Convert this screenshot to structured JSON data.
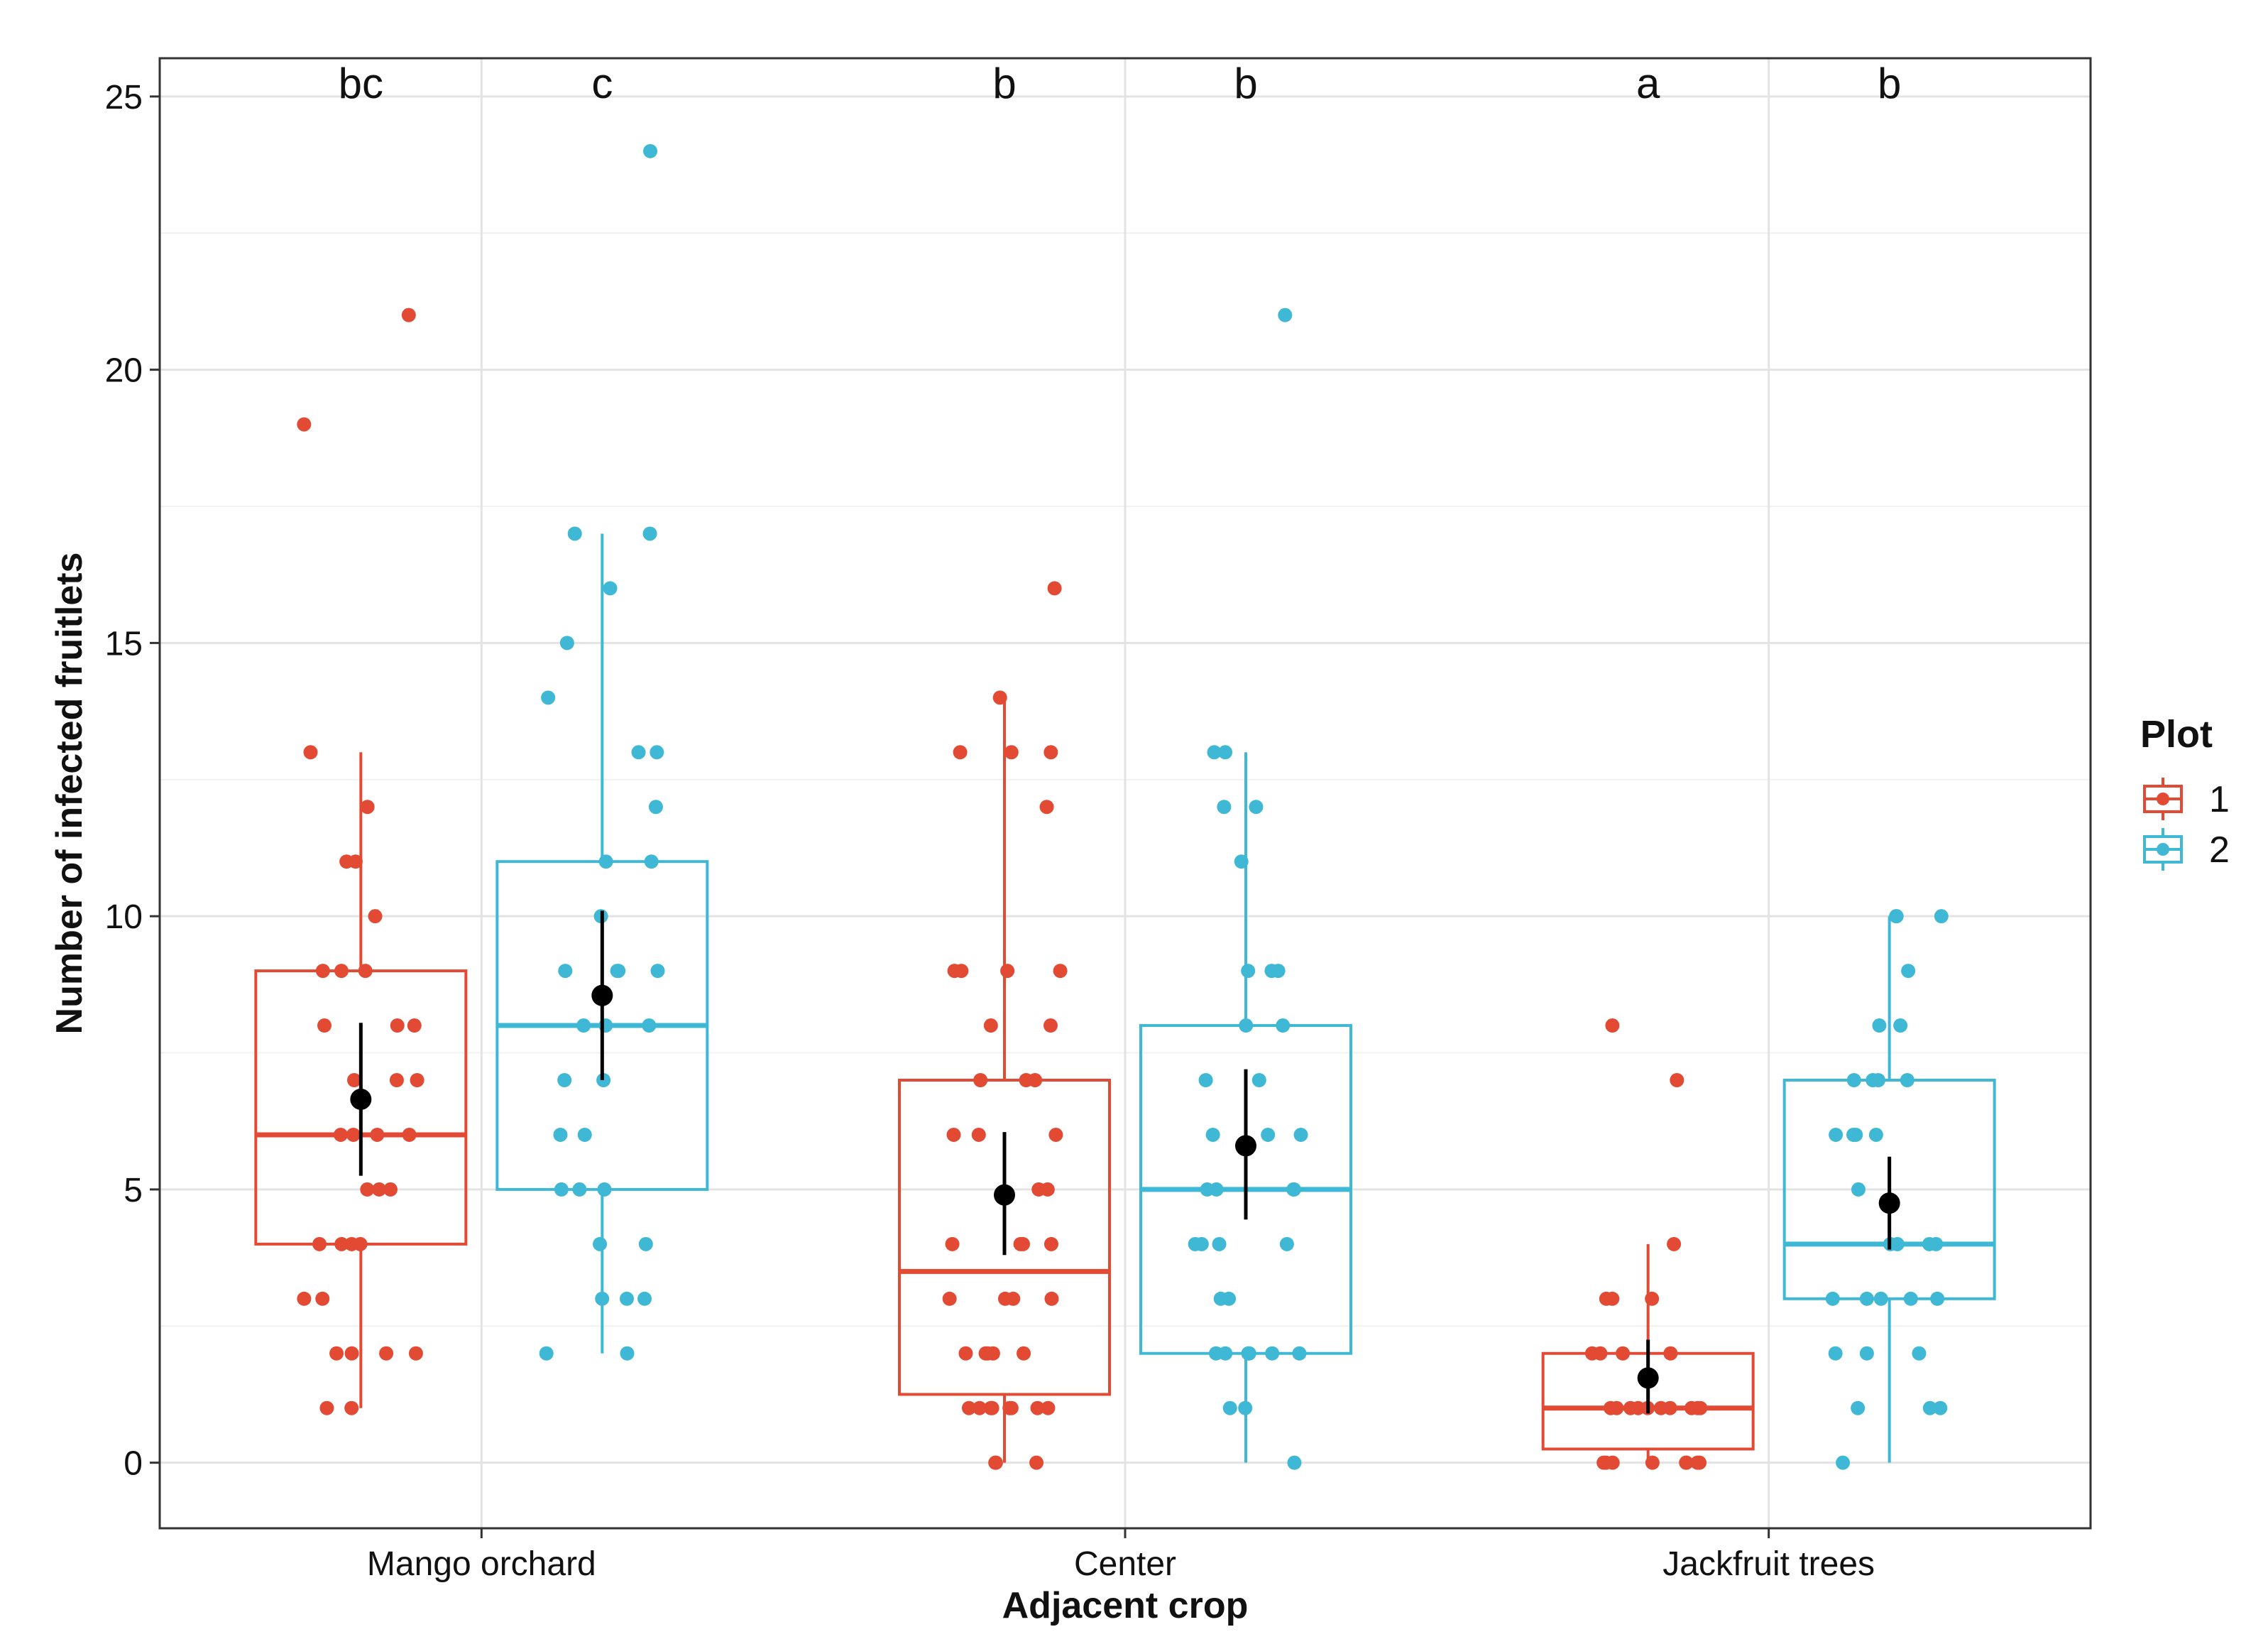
{
  "chart_data": {
    "type": "box",
    "xlabel": "Adjacent crop",
    "ylabel": "Number of infected fruitlets",
    "ylim": [
      -1.2,
      25.7
    ],
    "yticks": [
      0,
      5,
      10,
      15,
      20,
      25
    ],
    "grid": true,
    "categories": [
      "Mango orchard",
      "Center",
      "Jackfruit trees"
    ],
    "legend": {
      "title": "Plot",
      "position": "right",
      "entries": [
        {
          "label": "1",
          "color": "#E24A33"
        },
        {
          "label": "2",
          "color": "#3FB8D6"
        }
      ]
    },
    "groups": [
      {
        "category": "Mango orchard",
        "plot": "1",
        "color": "#E24A33",
        "letter": "bc",
        "q1": 4,
        "median": 6,
        "q3": 9,
        "whisker_low": 1,
        "whisker_high": 13,
        "mean": 6.65,
        "ci_low": 5.25,
        "ci_high": 8.05,
        "points": [
          19,
          21,
          13,
          12,
          11,
          11,
          10,
          9,
          9,
          9,
          8,
          8,
          8,
          7,
          7,
          7,
          6,
          6,
          6,
          6,
          5,
          5,
          5,
          4,
          4,
          4,
          4,
          3,
          3,
          2,
          2,
          2,
          2,
          1,
          1
        ]
      },
      {
        "category": "Mango orchard",
        "plot": "2",
        "color": "#3FB8D6",
        "letter": "c",
        "q1": 5,
        "median": 8,
        "q3": 11,
        "whisker_low": 2,
        "whisker_high": 17,
        "mean": 8.55,
        "ci_low": 7.0,
        "ci_high": 10.1,
        "points": [
          24,
          17,
          17,
          16,
          15,
          14,
          13,
          13,
          12,
          11,
          11,
          10,
          9,
          9,
          9,
          9,
          8,
          8,
          8,
          7,
          7,
          6,
          6,
          5,
          5,
          5,
          4,
          4,
          3,
          3,
          3,
          2,
          2
        ]
      },
      {
        "category": "Center",
        "plot": "1",
        "color": "#E24A33",
        "letter": "b",
        "q1": 1.25,
        "median": 3.5,
        "q3": 7,
        "whisker_low": 0,
        "whisker_high": 14,
        "mean": 4.9,
        "ci_low": 3.8,
        "ci_high": 6.05,
        "points": [
          16,
          14,
          13,
          13,
          13,
          12,
          9,
          9,
          9,
          9,
          8,
          8,
          7,
          7,
          7,
          6,
          6,
          6,
          5,
          5,
          4,
          4,
          4,
          4,
          3,
          3,
          3,
          3,
          2,
          2,
          2,
          2,
          2,
          1,
          1,
          1,
          1,
          1,
          1,
          1,
          1,
          0,
          0,
          0
        ]
      },
      {
        "category": "Center",
        "plot": "2",
        "color": "#3FB8D6",
        "letter": "b",
        "q1": 2,
        "median": 5,
        "q3": 8,
        "whisker_low": 0,
        "whisker_high": 13,
        "mean": 5.8,
        "ci_low": 4.45,
        "ci_high": 7.2,
        "points": [
          21,
          13,
          13,
          12,
          12,
          11,
          9,
          9,
          9,
          8,
          8,
          7,
          7,
          6,
          6,
          6,
          5,
          5,
          5,
          5,
          4,
          4,
          4,
          4,
          3,
          3,
          2,
          2,
          2,
          2,
          2,
          2,
          1,
          1,
          0
        ]
      },
      {
        "category": "Jackfruit trees",
        "plot": "1",
        "color": "#E24A33",
        "letter": "a",
        "q1": 0.25,
        "median": 1,
        "q3": 2,
        "whisker_low": 0,
        "whisker_high": 4,
        "mean": 1.55,
        "ci_low": 0.9,
        "ci_high": 2.25,
        "points": [
          8,
          7,
          4,
          3,
          3,
          3,
          2,
          2,
          2,
          2,
          1,
          1,
          1,
          1,
          1,
          1,
          1,
          1,
          1,
          1,
          0,
          0,
          0,
          0,
          0,
          0,
          0,
          0
        ]
      },
      {
        "category": "Jackfruit trees",
        "plot": "2",
        "color": "#3FB8D6",
        "letter": "b",
        "q1": 3,
        "median": 4,
        "q3": 7,
        "whisker_low": 0,
        "whisker_high": 10,
        "mean": 4.75,
        "ci_low": 3.9,
        "ci_high": 5.6,
        "points": [
          10,
          10,
          10,
          9,
          8,
          8,
          7,
          7,
          7,
          7,
          6,
          6,
          6,
          6,
          5,
          4,
          4,
          4,
          4,
          3,
          3,
          3,
          3,
          3,
          2,
          2,
          2,
          1,
          1,
          1,
          0
        ]
      }
    ]
  }
}
